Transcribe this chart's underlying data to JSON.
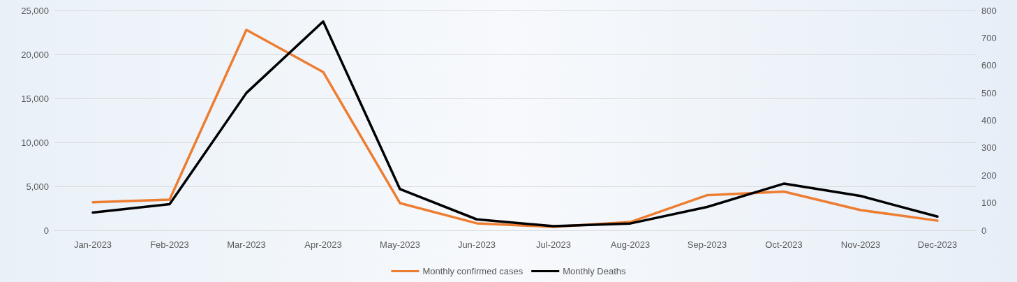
{
  "chart_data": {
    "type": "line",
    "categories": [
      "Jan-2023",
      "Feb-2023",
      "Mar-2023",
      "Apr-2023",
      "May-2023",
      "Jun-2023",
      "Jul-2023",
      "Aug-2023",
      "Sep-2023",
      "Oct-2023",
      "Nov-2023",
      "Dec-2023"
    ],
    "series": [
      {
        "name": "Monthly confirmed cases",
        "color": "#ed7d31",
        "values": [
          3200,
          3500,
          22800,
          18000,
          3100,
          800,
          400,
          950,
          4000,
          4400,
          2300,
          1100
        ]
      },
      {
        "name": "Monthly Deaths",
        "color": "#000000",
        "axis": "y2",
        "values": [
          65,
          95,
          500,
          760,
          150,
          40,
          15,
          25,
          85,
          170,
          125,
          50
        ]
      }
    ],
    "ylim": [
      0,
      25000
    ],
    "yticks": [
      {
        "value": 0,
        "label": "0"
      },
      {
        "value": 5000,
        "label": "5,000"
      },
      {
        "value": 10000,
        "label": "10,000"
      },
      {
        "value": 15000,
        "label": "15,000"
      },
      {
        "value": 20000,
        "label": "20,000"
      },
      {
        "value": 25000,
        "label": "25,000"
      }
    ],
    "y2lim": [
      0,
      800
    ],
    "y2ticks": [
      0,
      100,
      200,
      300,
      400,
      500,
      600,
      700,
      800
    ],
    "grid": "y",
    "legend": "bottom",
    "marker": "none",
    "line_style": "solid"
  }
}
